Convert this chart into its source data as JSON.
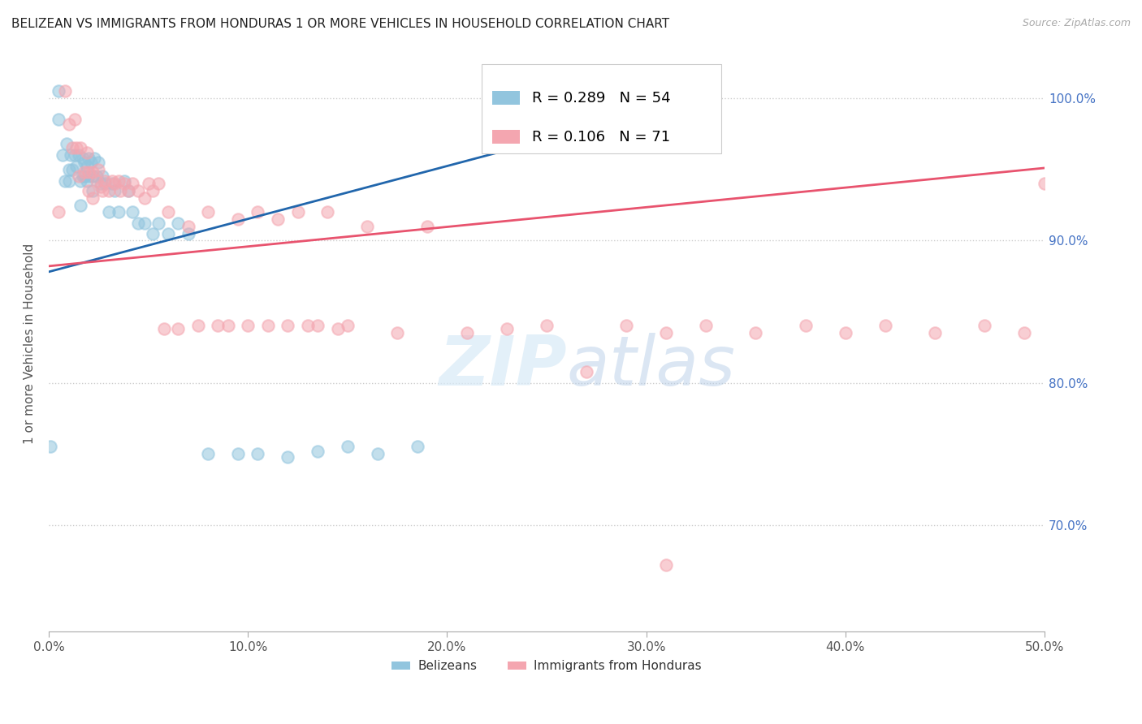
{
  "title": "BELIZEAN VS IMMIGRANTS FROM HONDURAS 1 OR MORE VEHICLES IN HOUSEHOLD CORRELATION CHART",
  "source": "Source: ZipAtlas.com",
  "ylabel": "1 or more Vehicles in Household",
  "legend_belizean": "Belizeans",
  "legend_honduras": "Immigrants from Honduras",
  "r_belizean": 0.289,
  "n_belizean": 54,
  "r_honduras": 0.106,
  "n_honduras": 71,
  "x_min": 0.0,
  "x_max": 0.5,
  "y_min": 0.625,
  "y_max": 1.03,
  "color_belizean": "#92c5de",
  "color_honduras": "#f4a6b0",
  "color_trend_belizean": "#2166ac",
  "color_trend_honduras": "#e8536e",
  "trend_belizean_x0": 0.0,
  "trend_belizean_y0": 0.878,
  "trend_belizean_x1": 0.32,
  "trend_belizean_y1": 0.997,
  "trend_honduras_x0": 0.0,
  "trend_honduras_y0": 0.882,
  "trend_honduras_x1": 0.5,
  "trend_honduras_y1": 0.951,
  "scatter_belizean_x": [
    0.001,
    0.005,
    0.005,
    0.007,
    0.008,
    0.009,
    0.01,
    0.01,
    0.011,
    0.012,
    0.013,
    0.014,
    0.015,
    0.016,
    0.016,
    0.017,
    0.017,
    0.018,
    0.018,
    0.019,
    0.019,
    0.02,
    0.02,
    0.021,
    0.022,
    0.022,
    0.023,
    0.024,
    0.025,
    0.026,
    0.027,
    0.028,
    0.03,
    0.032,
    0.033,
    0.035,
    0.038,
    0.04,
    0.042,
    0.045,
    0.048,
    0.052,
    0.055,
    0.06,
    0.065,
    0.07,
    0.08,
    0.095,
    0.105,
    0.12,
    0.135,
    0.15,
    0.165,
    0.185
  ],
  "scatter_belizean_y": [
    0.755,
    1.005,
    0.985,
    0.96,
    0.942,
    0.968,
    0.95,
    0.942,
    0.96,
    0.95,
    0.96,
    0.952,
    0.96,
    0.942,
    0.925,
    0.958,
    0.945,
    0.955,
    0.945,
    0.952,
    0.942,
    0.958,
    0.945,
    0.955,
    0.945,
    0.935,
    0.958,
    0.945,
    0.955,
    0.94,
    0.945,
    0.94,
    0.92,
    0.94,
    0.935,
    0.92,
    0.942,
    0.935,
    0.92,
    0.912,
    0.912,
    0.905,
    0.912,
    0.905,
    0.912,
    0.905,
    0.75,
    0.75,
    0.75,
    0.748,
    0.752,
    0.755,
    0.75,
    0.755
  ],
  "scatter_honduras_x": [
    0.005,
    0.008,
    0.01,
    0.012,
    0.013,
    0.014,
    0.015,
    0.016,
    0.018,
    0.019,
    0.02,
    0.02,
    0.022,
    0.022,
    0.024,
    0.025,
    0.026,
    0.027,
    0.028,
    0.03,
    0.032,
    0.033,
    0.035,
    0.036,
    0.038,
    0.04,
    0.042,
    0.045,
    0.048,
    0.05,
    0.052,
    0.055,
    0.058,
    0.06,
    0.065,
    0.07,
    0.075,
    0.08,
    0.085,
    0.09,
    0.095,
    0.1,
    0.105,
    0.11,
    0.115,
    0.12,
    0.125,
    0.13,
    0.135,
    0.14,
    0.145,
    0.15,
    0.16,
    0.175,
    0.19,
    0.21,
    0.23,
    0.25,
    0.27,
    0.29,
    0.31,
    0.33,
    0.355,
    0.38,
    0.4,
    0.42,
    0.445,
    0.47,
    0.49,
    0.5,
    0.31
  ],
  "scatter_honduras_y": [
    0.92,
    1.005,
    0.982,
    0.965,
    0.985,
    0.965,
    0.945,
    0.965,
    0.948,
    0.962,
    0.948,
    0.935,
    0.948,
    0.93,
    0.942,
    0.95,
    0.938,
    0.935,
    0.942,
    0.935,
    0.942,
    0.94,
    0.942,
    0.935,
    0.94,
    0.935,
    0.94,
    0.935,
    0.93,
    0.94,
    0.935,
    0.94,
    0.838,
    0.92,
    0.838,
    0.91,
    0.84,
    0.92,
    0.84,
    0.84,
    0.915,
    0.84,
    0.92,
    0.84,
    0.915,
    0.84,
    0.92,
    0.84,
    0.84,
    0.92,
    0.838,
    0.84,
    0.91,
    0.835,
    0.91,
    0.835,
    0.838,
    0.84,
    0.808,
    0.84,
    0.835,
    0.84,
    0.835,
    0.84,
    0.835,
    0.84,
    0.835,
    0.84,
    0.835,
    0.94,
    0.672
  ]
}
